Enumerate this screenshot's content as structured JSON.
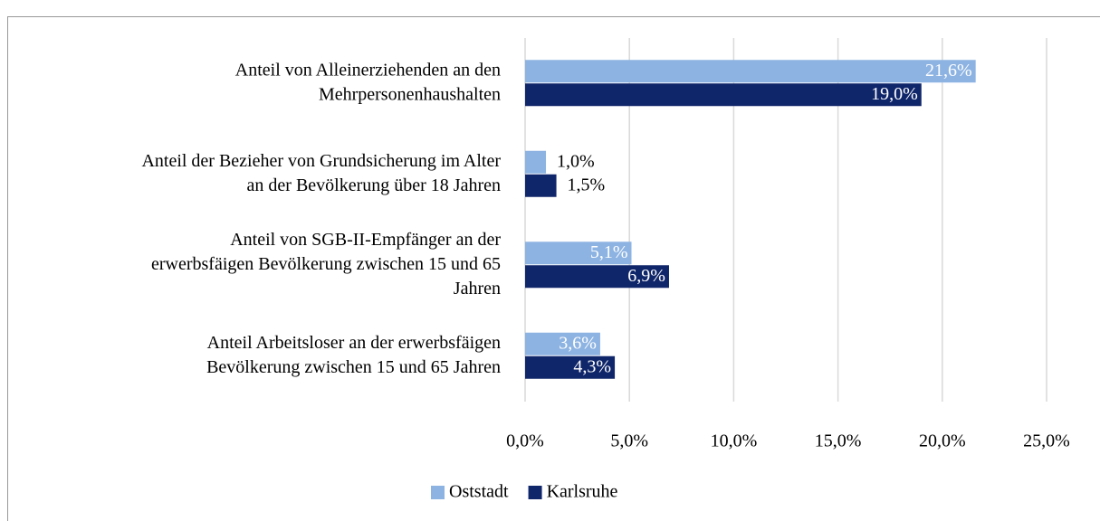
{
  "chart_data": {
    "type": "bar",
    "orientation": "horizontal",
    "categories": [
      [
        "Anteil von Alleinerziehenden an den",
        "Mehrpersonenhaushalten"
      ],
      [
        "Anteil der Bezieher von Grundsicherung im Alter",
        "an der Bevölkerung über 18 Jahren"
      ],
      [
        "Anteil von SGB-II-Empfänger an der",
        "erwerbsfäigen Bevölkerung zwischen 15 und 65",
        "Jahren"
      ],
      [
        "Anteil Arbeitsloser an der erwerbsfäigen",
        "Bevölkerung zwischen 15 und 65 Jahren"
      ]
    ],
    "series": [
      {
        "name": "Oststadt",
        "color": "#8db3e2",
        "values": [
          21.6,
          1.0,
          5.1,
          3.6
        ],
        "value_labels": [
          "21,6%",
          "1,0%",
          "5,1%",
          "3,6%"
        ]
      },
      {
        "name": "Karlsruhe",
        "color": "#10266a",
        "values": [
          19.0,
          1.5,
          6.9,
          4.3
        ],
        "value_labels": [
          "19,0%",
          "1,5%",
          "6,9%",
          "4,3%"
        ]
      }
    ],
    "xlim": [
      0,
      25
    ],
    "xticks": [
      {
        "value": 0,
        "label": "0,0%"
      },
      {
        "value": 5,
        "label": "5,0%"
      },
      {
        "value": 10,
        "label": "10,0%"
      },
      {
        "value": 15,
        "label": "15,0%"
      },
      {
        "value": 20,
        "label": "20,0%"
      },
      {
        "value": 25,
        "label": "25,0%"
      }
    ],
    "grid": true,
    "legend": "bottom"
  }
}
